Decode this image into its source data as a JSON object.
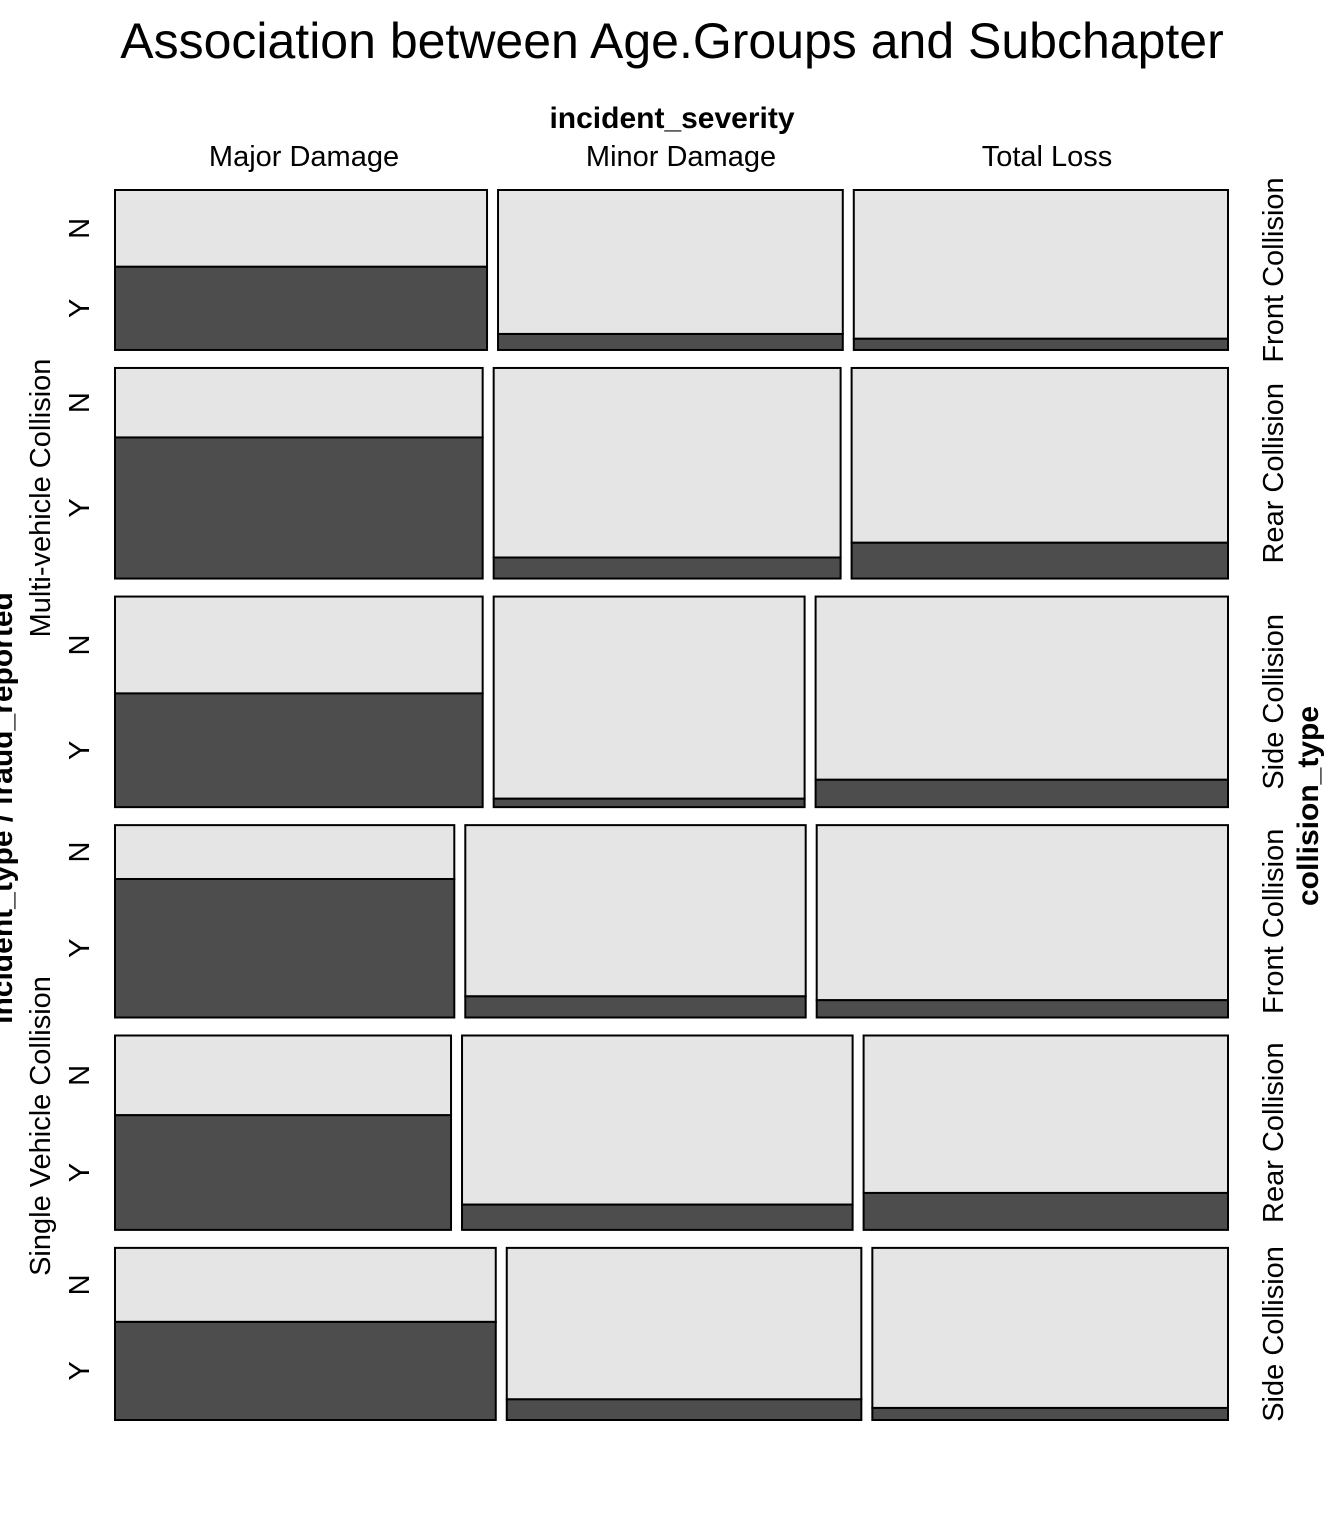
{
  "chart_data": {
    "type": "mosaic",
    "title": "Association between Age.Groups and Subchapter",
    "column_variable": "incident_severity",
    "columns": [
      "Major Damage",
      "Minor Damage",
      "Total Loss"
    ],
    "row_variable_left": "incident_type / fraud_reported",
    "row_variable_right": "collision_type",
    "incident_types": [
      "Multi-vehicle Collision",
      "Single Vehicle Collision"
    ],
    "fraud_levels": [
      "N",
      "Y"
    ],
    "colors": {
      "N": "#e5e5e5",
      "Y": "#4d4d4d"
    },
    "rows": [
      {
        "incident_type": "Multi-vehicle Collision",
        "collision_type": "Front Collision",
        "row_share": 0.158,
        "column_share": [
          0.341,
          0.316,
          0.343
        ],
        "fraud_Y_share": [
          0.52,
          0.1,
          0.07
        ]
      },
      {
        "incident_type": "Multi-vehicle Collision",
        "collision_type": "Rear Collision",
        "row_share": 0.208,
        "column_share": [
          0.337,
          0.318,
          0.345
        ],
        "fraud_Y_share": [
          0.67,
          0.1,
          0.17
        ]
      },
      {
        "incident_type": "Multi-vehicle Collision",
        "collision_type": "Side Collision",
        "row_share": 0.208,
        "column_share": [
          0.337,
          0.285,
          0.378
        ],
        "fraud_Y_share": [
          0.54,
          0.04,
          0.13
        ]
      },
      {
        "incident_type": "Single Vehicle Collision",
        "collision_type": "Front Collision",
        "row_share": 0.19,
        "column_share": [
          0.311,
          0.312,
          0.377
        ],
        "fraud_Y_share": [
          0.72,
          0.11,
          0.09
        ]
      },
      {
        "incident_type": "Single Vehicle Collision",
        "collision_type": "Rear Collision",
        "row_share": 0.192,
        "column_share": [
          0.308,
          0.358,
          0.334
        ],
        "fraud_Y_share": [
          0.59,
          0.13,
          0.19
        ]
      },
      {
        "incident_type": "Single Vehicle Collision",
        "collision_type": "Side Collision",
        "row_share": 0.17,
        "column_share": [
          0.349,
          0.325,
          0.326
        ],
        "fraud_Y_share": [
          0.57,
          0.12,
          0.07
        ]
      }
    ]
  }
}
